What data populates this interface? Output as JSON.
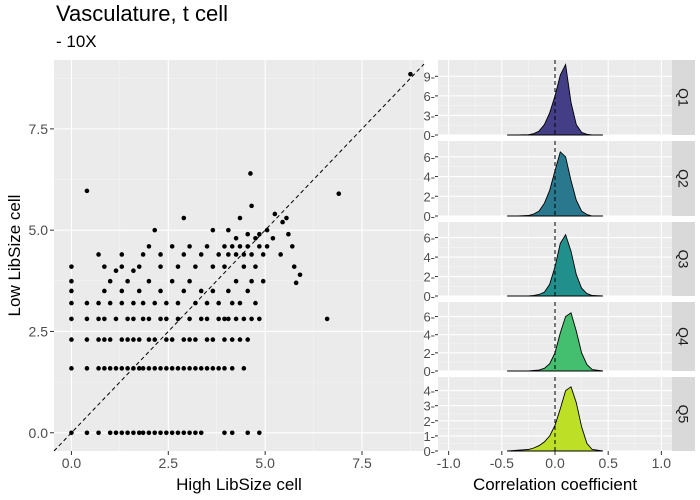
{
  "title": "Vasculature, t cell",
  "subtitle": "- 10X",
  "chart_data": [
    {
      "type": "scatter",
      "xlabel": "High LibSize cell",
      "ylabel": "Low LibSize cell",
      "xlim": [
        -0.45,
        9.1
      ],
      "ylim": [
        -0.45,
        9.2
      ],
      "xticks": [
        0,
        2.5,
        5,
        7.5
      ],
      "xtick_labels": [
        "0.0",
        "2.5",
        "5.0",
        "7.5"
      ],
      "yticks": [
        0,
        2.5,
        5,
        7.5
      ],
      "ytick_labels": [
        "0.0",
        "2.5",
        "5.0",
        "7.5"
      ],
      "reference_line": "identity (y = x), dashed",
      "grid": true,
      "points": [
        [
          0,
          0
        ],
        [
          0,
          1.59
        ],
        [
          0,
          2.3
        ],
        [
          0,
          2.81
        ],
        [
          0,
          3.2
        ],
        [
          0,
          3.5
        ],
        [
          0,
          3.74
        ],
        [
          0,
          4.1
        ],
        [
          0.4,
          0
        ],
        [
          0.4,
          1.59
        ],
        [
          0.4,
          2.3
        ],
        [
          0.4,
          2.81
        ],
        [
          0.4,
          3.2
        ],
        [
          0.4,
          5.97
        ],
        [
          0.7,
          0
        ],
        [
          0.7,
          1.59
        ],
        [
          0.7,
          2.3
        ],
        [
          0.7,
          2.81
        ],
        [
          0.7,
          3.2
        ],
        [
          0.7,
          4.4
        ],
        [
          0.85,
          1.59
        ],
        [
          0.85,
          2.3
        ],
        [
          0.85,
          2.81
        ],
        [
          0.85,
          3.5
        ],
        [
          0.85,
          4.1
        ],
        [
          1.0,
          0
        ],
        [
          1.0,
          1.59
        ],
        [
          1.0,
          2.3
        ],
        [
          1.0,
          3.2
        ],
        [
          1.0,
          3.74
        ],
        [
          1.15,
          0
        ],
        [
          1.15,
          1.59
        ],
        [
          1.15,
          2.81
        ],
        [
          1.15,
          4.0
        ],
        [
          1.3,
          0
        ],
        [
          1.3,
          1.59
        ],
        [
          1.3,
          2.3
        ],
        [
          1.3,
          3.2
        ],
        [
          1.3,
          3.5
        ],
        [
          1.3,
          4.1
        ],
        [
          1.3,
          4.4
        ],
        [
          1.45,
          0
        ],
        [
          1.45,
          1.59
        ],
        [
          1.45,
          2.3
        ],
        [
          1.45,
          2.81
        ],
        [
          1.45,
          3.74
        ],
        [
          1.6,
          0
        ],
        [
          1.6,
          1.59
        ],
        [
          1.6,
          2.3
        ],
        [
          1.6,
          2.81
        ],
        [
          1.6,
          3.2
        ],
        [
          1.6,
          4.0
        ],
        [
          1.75,
          0
        ],
        [
          1.75,
          1.59
        ],
        [
          1.75,
          2.3
        ],
        [
          1.75,
          3.5
        ],
        [
          1.75,
          4.1
        ],
        [
          1.85,
          0
        ],
        [
          1.85,
          1.59
        ],
        [
          1.85,
          2.81
        ],
        [
          1.85,
          3.2
        ],
        [
          1.85,
          4.4
        ],
        [
          2.0,
          0
        ],
        [
          2.0,
          1.59
        ],
        [
          2.0,
          2.3
        ],
        [
          2.0,
          2.81
        ],
        [
          2.0,
          3.74
        ],
        [
          2.0,
          4.6
        ],
        [
          2.15,
          0
        ],
        [
          2.15,
          1.59
        ],
        [
          2.15,
          2.3
        ],
        [
          2.15,
          3.2
        ],
        [
          2.15,
          5.0
        ],
        [
          2.3,
          0
        ],
        [
          2.3,
          1.59
        ],
        [
          2.3,
          2.81
        ],
        [
          2.3,
          3.5
        ],
        [
          2.3,
          4.1
        ],
        [
          2.3,
          4.4
        ],
        [
          2.45,
          0
        ],
        [
          2.45,
          1.59
        ],
        [
          2.45,
          2.3
        ],
        [
          2.45,
          2.81
        ],
        [
          2.45,
          3.2
        ],
        [
          2.6,
          0
        ],
        [
          2.6,
          1.59
        ],
        [
          2.6,
          2.3
        ],
        [
          2.6,
          3.74
        ],
        [
          2.6,
          4.6
        ],
        [
          2.75,
          0
        ],
        [
          2.75,
          1.59
        ],
        [
          2.75,
          2.81
        ],
        [
          2.75,
          3.2
        ],
        [
          2.75,
          4.1
        ],
        [
          2.9,
          0
        ],
        [
          2.9,
          1.59
        ],
        [
          2.9,
          2.3
        ],
        [
          2.9,
          3.5
        ],
        [
          2.9,
          4.4
        ],
        [
          2.9,
          5.3
        ],
        [
          3.05,
          0
        ],
        [
          3.05,
          1.59
        ],
        [
          3.05,
          2.3
        ],
        [
          3.05,
          2.81
        ],
        [
          3.05,
          3.74
        ],
        [
          3.05,
          4.6
        ],
        [
          3.2,
          0
        ],
        [
          3.2,
          1.59
        ],
        [
          3.2,
          2.3
        ],
        [
          3.2,
          3.2
        ],
        [
          3.2,
          4.1
        ],
        [
          3.35,
          0
        ],
        [
          3.35,
          1.59
        ],
        [
          3.35,
          2.81
        ],
        [
          3.35,
          3.5
        ],
        [
          3.35,
          4.4
        ],
        [
          3.5,
          1.59
        ],
        [
          3.5,
          2.3
        ],
        [
          3.5,
          2.81
        ],
        [
          3.5,
          3.2
        ],
        [
          3.5,
          4.6
        ],
        [
          3.65,
          1.59
        ],
        [
          3.65,
          2.3
        ],
        [
          3.65,
          3.5
        ],
        [
          3.65,
          4.1
        ],
        [
          3.65,
          5.0
        ],
        [
          3.8,
          1.59
        ],
        [
          3.8,
          2.81
        ],
        [
          3.8,
          3.2
        ],
        [
          3.8,
          4.4
        ],
        [
          3.95,
          0
        ],
        [
          3.95,
          1.59
        ],
        [
          3.95,
          2.3
        ],
        [
          3.95,
          2.81
        ],
        [
          3.95,
          4.1
        ],
        [
          3.95,
          4.6
        ],
        [
          4.05,
          2.81
        ],
        [
          4.05,
          3.5
        ],
        [
          4.05,
          4.4
        ],
        [
          4.05,
          5.0
        ],
        [
          4.15,
          0
        ],
        [
          4.15,
          1.59
        ],
        [
          4.15,
          2.3
        ],
        [
          4.15,
          3.2
        ],
        [
          4.15,
          4.6
        ],
        [
          4.25,
          2.81
        ],
        [
          4.25,
          3.74
        ],
        [
          4.25,
          4.4
        ],
        [
          4.25,
          4.8
        ],
        [
          4.35,
          2.3
        ],
        [
          4.35,
          3.2
        ],
        [
          4.35,
          4.6
        ],
        [
          4.35,
          5.3
        ],
        [
          4.45,
          1.59
        ],
        [
          4.45,
          2.81
        ],
        [
          4.45,
          4.1
        ],
        [
          4.45,
          4.4
        ],
        [
          4.55,
          0
        ],
        [
          4.55,
          2.3
        ],
        [
          4.55,
          3.5
        ],
        [
          4.55,
          4.6
        ],
        [
          4.55,
          4.9
        ],
        [
          4.62,
          6.4
        ],
        [
          4.65,
          2.81
        ],
        [
          4.65,
          3.74
        ],
        [
          4.65,
          4.4
        ],
        [
          4.65,
          5.6
        ],
        [
          4.75,
          3.2
        ],
        [
          4.75,
          4.1
        ],
        [
          4.75,
          4.8
        ],
        [
          4.85,
          0
        ],
        [
          4.85,
          2.81
        ],
        [
          4.85,
          4.6
        ],
        [
          4.85,
          4.9
        ],
        [
          4.95,
          3.74
        ],
        [
          4.95,
          4.4
        ],
        [
          5.05,
          4.6
        ],
        [
          5.05,
          5.0
        ],
        [
          5.2,
          4.8
        ],
        [
          5.25,
          5.4
        ],
        [
          5.4,
          4.4
        ],
        [
          5.45,
          5.2
        ],
        [
          5.55,
          5.3
        ],
        [
          5.6,
          4.9
        ],
        [
          5.7,
          4.6
        ],
        [
          5.75,
          4.1
        ],
        [
          5.8,
          3.7
        ],
        [
          5.9,
          3.9
        ],
        [
          6.6,
          2.81
        ],
        [
          6.9,
          5.9
        ],
        [
          8.75,
          8.85
        ]
      ]
    },
    {
      "type": "area",
      "subtype": "density, faceted by quantile",
      "xlabel": "Correlation coefficient",
      "xlim": [
        -1.1,
        1.1
      ],
      "xticks": [
        -1,
        -0.5,
        0,
        0.5,
        1
      ],
      "xtick_labels": [
        "-1.0",
        "-0.5",
        "0.0",
        "0.5",
        "1.0"
      ],
      "reference_line": "x = 0, dashed",
      "x_grid": [
        -0.45,
        -0.35,
        -0.25,
        -0.2,
        -0.15,
        -0.1,
        -0.05,
        0,
        0.05,
        0.1,
        0.15,
        0.2,
        0.25,
        0.3,
        0.35,
        0.45
      ],
      "facets": [
        {
          "label": "Q1",
          "color": "#433E85",
          "ylim": [
            0,
            11.5
          ],
          "yticks": [
            0,
            3,
            6,
            9
          ],
          "ytick_labels": [
            "0-",
            "3-",
            "6-",
            "9-"
          ],
          "values": [
            0,
            0,
            0.05,
            0.2,
            0.6,
            1.6,
            3.4,
            6.0,
            9.2,
            10.8,
            5.0,
            1.6,
            0.4,
            0.1,
            0,
            0
          ]
        },
        {
          "label": "Q2",
          "color": "#2A788E",
          "ylim": [
            0,
            7.6
          ],
          "yticks": [
            0,
            2,
            4,
            6
          ],
          "ytick_labels": [
            "0-",
            "2-",
            "4-",
            "6-"
          ],
          "values": [
            0,
            0,
            0.05,
            0.2,
            0.5,
            1.3,
            2.6,
            4.6,
            6.5,
            6.0,
            3.6,
            1.6,
            0.5,
            0.15,
            0,
            0
          ]
        },
        {
          "label": "Q3",
          "color": "#21908C",
          "ylim": [
            0,
            7.6
          ],
          "yticks": [
            0,
            2,
            4,
            6
          ],
          "ytick_labels": [
            "0-",
            "2-",
            "4-",
            "6-"
          ],
          "values": [
            0,
            0,
            0,
            0.05,
            0.15,
            0.4,
            1.2,
            3.0,
            5.4,
            6.3,
            4.6,
            2.2,
            0.8,
            0.25,
            0.05,
            0
          ]
        },
        {
          "label": "Q4",
          "color": "#44BF70",
          "ylim": [
            0,
            7.6
          ],
          "yticks": [
            0,
            2,
            4,
            6
          ],
          "ytick_labels": [
            "0-",
            "2-",
            "4-",
            "6-"
          ],
          "values": [
            0,
            0,
            0,
            0.05,
            0.1,
            0.3,
            0.8,
            2.0,
            4.2,
            6.0,
            6.4,
            4.4,
            2.0,
            0.7,
            0.15,
            0
          ]
        },
        {
          "label": "Q5",
          "color": "#BDDF26",
          "ylim": [
            0,
            4.9
          ],
          "yticks": [
            0,
            1,
            2,
            3,
            4
          ],
          "ytick_labels": [
            "0-",
            "1-",
            "2-",
            "3-",
            "4-"
          ],
          "values": [
            0,
            0.05,
            0.1,
            0.2,
            0.35,
            0.6,
            1.0,
            1.7,
            2.8,
            4.0,
            4.25,
            3.2,
            1.6,
            0.5,
            0.1,
            0
          ]
        }
      ]
    }
  ]
}
